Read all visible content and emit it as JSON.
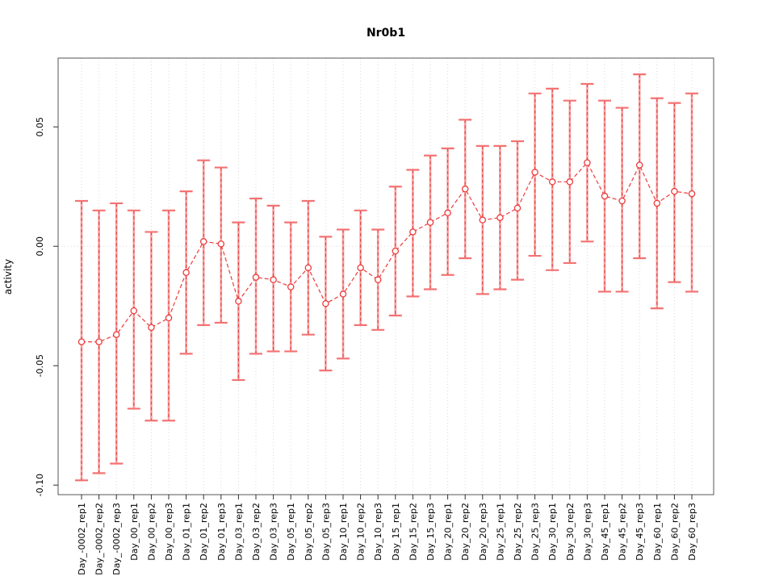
{
  "chart_data": {
    "type": "scatter",
    "title": "Nr0b1",
    "xlabel": "",
    "ylabel": "activity",
    "legend": "none",
    "grid": "vertical dotted line at every category; horizontal dotted line at y=0",
    "categories": [
      "Day_-0002_rep1",
      "Day_-0002_rep2",
      "Day_-0002_rep3",
      "Day_00_rep1",
      "Day_00_rep2",
      "Day_00_rep3",
      "Day_01_rep1",
      "Day_01_rep2",
      "Day_01_rep3",
      "Day_03_rep1",
      "Day_03_rep2",
      "Day_03_rep3",
      "Day_05_rep1",
      "Day_05_rep2",
      "Day_05_rep3",
      "Day_10_rep1",
      "Day_10_rep2",
      "Day_10_rep3",
      "Day_15_rep1",
      "Day_15_rep2",
      "Day_15_rep3",
      "Day_20_rep1",
      "Day_20_rep2",
      "Day_20_rep3",
      "Day_25_rep1",
      "Day_25_rep2",
      "Day_25_rep3",
      "Day_30_rep1",
      "Day_30_rep2",
      "Day_30_rep3",
      "Day_45_rep1",
      "Day_45_rep2",
      "Day_45_rep3",
      "Day_60_rep1",
      "Day_60_rep2",
      "Day_60_rep3"
    ],
    "values": [
      -0.04,
      -0.04,
      -0.037,
      -0.027,
      -0.034,
      -0.03,
      -0.011,
      0.002,
      0.001,
      -0.023,
      -0.013,
      -0.014,
      -0.017,
      -0.009,
      -0.024,
      -0.02,
      -0.009,
      -0.014,
      -0.002,
      0.006,
      0.01,
      0.014,
      0.024,
      0.011,
      0.012,
      0.016,
      0.031,
      0.027,
      0.027,
      0.035,
      0.021,
      0.019,
      0.034,
      0.018,
      0.023,
      0.022
    ],
    "error_high": [
      0.019,
      0.015,
      0.018,
      0.015,
      0.006,
      0.015,
      0.023,
      0.036,
      0.033,
      0.01,
      0.02,
      0.017,
      0.01,
      0.019,
      0.004,
      0.007,
      0.015,
      0.007,
      0.025,
      0.032,
      0.038,
      0.041,
      0.053,
      0.042,
      0.042,
      0.044,
      0.064,
      0.066,
      0.061,
      0.068,
      0.061,
      0.058,
      0.072,
      0.062,
      0.06,
      0.064
    ],
    "error_low": [
      -0.098,
      -0.095,
      -0.091,
      -0.068,
      -0.073,
      -0.073,
      -0.045,
      -0.033,
      -0.032,
      -0.056,
      -0.045,
      -0.044,
      -0.044,
      -0.037,
      -0.052,
      -0.047,
      -0.033,
      -0.035,
      -0.029,
      -0.021,
      -0.018,
      -0.012,
      -0.005,
      -0.02,
      -0.018,
      -0.014,
      -0.004,
      -0.01,
      -0.007,
      0.002,
      -0.019,
      -0.019,
      -0.005,
      -0.026,
      -0.015,
      -0.019
    ],
    "yticks": [
      {
        "v": 0.05,
        "label": "0.05"
      },
      {
        "v": 0.0,
        "label": "0.00"
      },
      {
        "v": -0.05,
        "label": "-0.05"
      },
      {
        "v": -0.1,
        "label": "-0.10"
      }
    ],
    "ylim": [
      -0.104,
      0.0788
    ],
    "colors": {
      "point": "#ee3b3b",
      "line": "#ee3b3b",
      "bar_solid": "#f9a0a0",
      "bar_dash": "#e04343",
      "cap": "#f47272",
      "grid": "#d9d9d9",
      "axis": "#555555",
      "tick": "#2e2e2e",
      "text": "#000000"
    }
  }
}
